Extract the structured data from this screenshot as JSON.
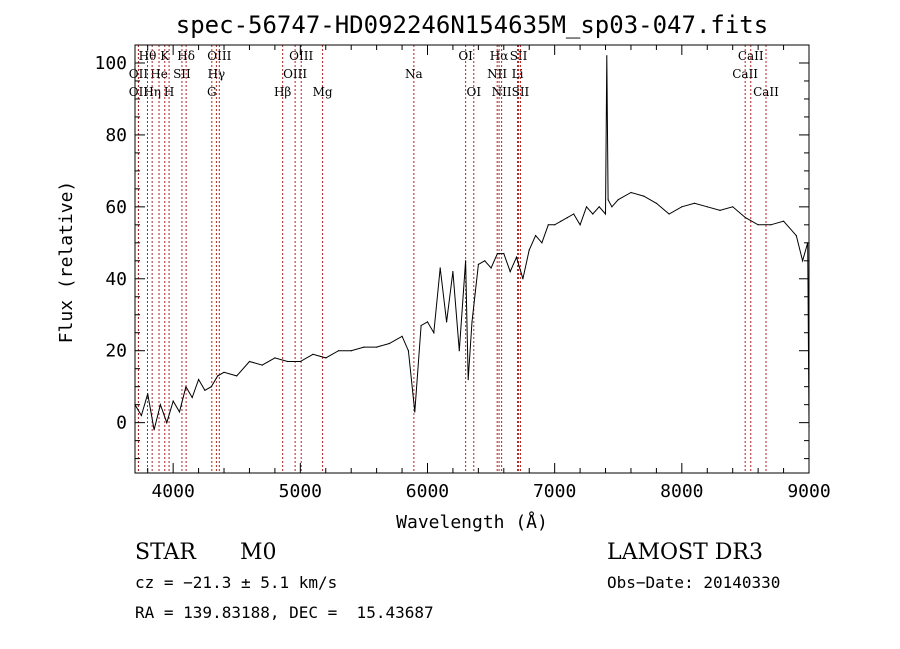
{
  "chart_data": {
    "type": "line",
    "title": "spec-56747-HD092246N154635M_sp03-047.fits",
    "xlabel": "Wavelength (Å)",
    "ylabel": "Flux (relative)",
    "xlim": [
      3700,
      9000
    ],
    "ylim": [
      -14,
      105
    ],
    "xticks": [
      4000,
      5000,
      6000,
      7000,
      8000,
      9000
    ],
    "yticks": [
      0,
      20,
      40,
      60,
      80,
      100
    ],
    "xtick_labels": [
      "4000",
      "5000",
      "6000",
      "7000",
      "8000",
      "9000"
    ],
    "ytick_labels": [
      "0",
      "20",
      "40",
      "60",
      "80",
      "100"
    ],
    "series": [
      {
        "name": "flux",
        "x": [
          3700,
          3750,
          3800,
          3850,
          3900,
          3950,
          4000,
          4050,
          4100,
          4150,
          4200,
          4250,
          4300,
          4350,
          4400,
          4500,
          4600,
          4700,
          4800,
          4900,
          5000,
          5100,
          5200,
          5300,
          5400,
          5500,
          5600,
          5700,
          5800,
          5850,
          5900,
          5950,
          6000,
          6050,
          6100,
          6150,
          6200,
          6250,
          6300,
          6320,
          6350,
          6400,
          6450,
          6500,
          6550,
          6600,
          6650,
          6700,
          6750,
          6800,
          6850,
          6900,
          6950,
          7000,
          7050,
          7100,
          7150,
          7200,
          7250,
          7300,
          7350,
          7400,
          7410,
          7420,
          7450,
          7500,
          7600,
          7700,
          7800,
          7900,
          8000,
          8100,
          8200,
          8300,
          8400,
          8500,
          8600,
          8700,
          8800,
          8900,
          8950,
          8990,
          9000
        ],
        "y": [
          5,
          2,
          8,
          -2,
          5,
          0,
          6,
          3,
          10,
          7,
          12,
          9,
          10,
          13,
          14,
          13,
          17,
          16,
          18,
          17,
          17,
          19,
          18,
          20,
          20,
          21,
          21,
          22,
          24,
          20,
          3,
          27,
          28,
          25,
          43,
          28,
          42,
          20,
          45,
          12,
          28,
          44,
          45,
          43,
          47,
          47,
          42,
          46,
          40,
          48,
          52,
          50,
          55,
          55,
          56,
          57,
          58,
          55,
          60,
          58,
          60,
          58,
          102,
          62,
          60,
          62,
          64,
          63,
          61,
          58,
          60,
          61,
          60,
          59,
          60,
          57,
          55,
          55,
          56,
          52,
          45,
          50,
          -1
        ]
      }
    ],
    "lines": [
      {
        "label": "Hθ",
        "wave": 3798,
        "row": 0
      },
      {
        "label": "OII",
        "wave": 3727,
        "row": 1
      },
      {
        "label": "OII",
        "wave": 3727,
        "row": 2
      },
      {
        "label": "K",
        "wave": 3934,
        "row": 0
      },
      {
        "label": "He",
        "wave": 3889,
        "row": 1
      },
      {
        "label": "Hη",
        "wave": 3835,
        "row": 2
      },
      {
        "label": "Hδ",
        "wave": 4102,
        "row": 0
      },
      {
        "label": "SII",
        "wave": 4069,
        "row": 1
      },
      {
        "label": "H",
        "wave": 3968,
        "row": 2
      },
      {
        "label": "OIII",
        "wave": 4363,
        "row": 0
      },
      {
        "label": "Hγ",
        "wave": 4340,
        "row": 1
      },
      {
        "label": "G",
        "wave": 4304,
        "row": 2
      },
      {
        "label": "OIII",
        "wave": 5007,
        "row": 0
      },
      {
        "label": "OIII",
        "wave": 4959,
        "row": 1
      },
      {
        "label": "Hβ",
        "wave": 4861,
        "row": 2
      },
      {
        "label": "Mg",
        "wave": 5175,
        "row": 2
      },
      {
        "label": "Na",
        "wave": 5893,
        "row": 1
      },
      {
        "label": "OI",
        "wave": 6300,
        "row": 0
      },
      {
        "label": "OI",
        "wave": 6364,
        "row": 2
      },
      {
        "label": "Hα",
        "wave": 6563,
        "row": 0
      },
      {
        "label": "NII",
        "wave": 6548,
        "row": 1
      },
      {
        "label": "NII",
        "wave": 6583,
        "row": 2
      },
      {
        "label": "SII",
        "wave": 6716,
        "row": 0
      },
      {
        "label": "Li",
        "wave": 6708,
        "row": 1
      },
      {
        "label": "SII",
        "wave": 6731,
        "row": 2
      },
      {
        "label": "CaII",
        "wave": 8542,
        "row": 0
      },
      {
        "label": "CaII",
        "wave": 8498,
        "row": 1
      },
      {
        "label": "CaII",
        "wave": 8662,
        "row": 2
      }
    ]
  },
  "info": {
    "class": "STAR",
    "subclass": "M0",
    "survey": "LAMOST DR3",
    "cz": "cz = −21.3 ± 5.1 km/s",
    "obs_date": "Obs−Date: 20140330",
    "coords": "RA = 139.83188, DEC =  15.43687"
  }
}
